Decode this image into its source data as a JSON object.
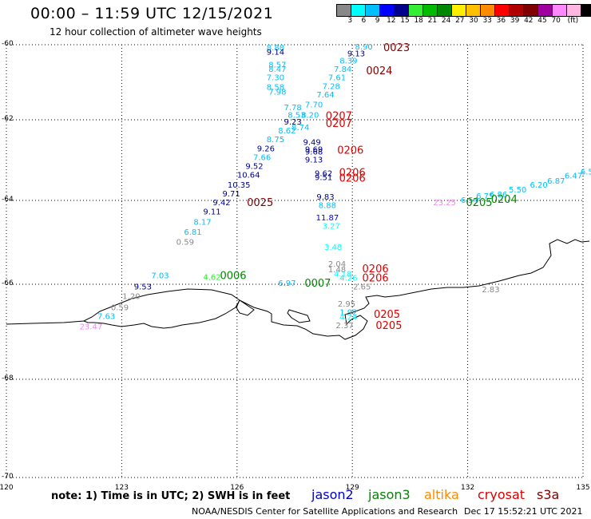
{
  "header": {
    "title": "00:00 – 11:59 UTC 12/15/2021",
    "subtitle": "12 hour collection of altimeter wave heights"
  },
  "legend": {
    "colors": [
      "#888888",
      "#00ffff",
      "#00bfff",
      "#0000ff",
      "#00008b",
      "#33ee33",
      "#00bb00",
      "#008800",
      "#ffee00",
      "#ffc000",
      "#ff8c00",
      "#ff0000",
      "#b00000",
      "#800000",
      "#a000a0",
      "#ff88ff",
      "#ffb6e0",
      "#000000"
    ],
    "labels": [
      "3",
      "6",
      "9",
      "12",
      "15",
      "18",
      "21",
      "24",
      "27",
      "30",
      "33",
      "36",
      "39",
      "42",
      "45",
      "70",
      "(ft)"
    ],
    "label_stops": [
      1,
      2,
      3,
      4,
      5,
      6,
      7,
      8,
      9,
      10,
      11,
      12,
      13,
      14,
      15,
      16,
      17
    ]
  },
  "axes": {
    "lat_labels": [
      "-60",
      "-62",
      "-64",
      "-66",
      "-68",
      "-70"
    ],
    "lon_labels": [
      "120",
      "123",
      "126",
      "129",
      "132",
      "135"
    ]
  },
  "note": "note: 1) Time is in UTC; 2) SWH is in feet",
  "satellites": [
    {
      "name": "jason2",
      "color": "#0000cc"
    },
    {
      "name": "jason3",
      "color": "#008800"
    },
    {
      "name": "altika",
      "color": "#ff8800"
    },
    {
      "name": "cryosat",
      "color": "#dd0000"
    },
    {
      "name": "s3a",
      "color": "#800000"
    }
  ],
  "footer": {
    "credit": "NOAA/NESDIS Center for Satellite Applications and Research",
    "generated": "Dec 17 15:52:21 UTC 2021"
  },
  "map_data": {
    "wave_labels": [
      {
        "text": "8.88",
        "lon": 127.0,
        "lat": -60.06,
        "color": "#00bfff"
      },
      {
        "text": "9.14",
        "lon": 127.0,
        "lat": -60.18,
        "color": "#00008b"
      },
      {
        "text": "8.90",
        "lon": 129.3,
        "lat": -60.04,
        "color": "#00bfff"
      },
      {
        "text": "9.13",
        "lon": 129.1,
        "lat": -60.22,
        "color": "#00008b"
      },
      {
        "text": "8.39",
        "lon": 128.9,
        "lat": -60.42,
        "color": "#00bfff"
      },
      {
        "text": "8.57",
        "lon": 127.05,
        "lat": -60.52,
        "color": "#00bfff"
      },
      {
        "text": "8.47",
        "lon": 127.05,
        "lat": -60.64,
        "color": "#00bfff"
      },
      {
        "text": "7.84",
        "lon": 128.75,
        "lat": -60.64,
        "color": "#00bfff"
      },
      {
        "text": "7.30",
        "lon": 127.0,
        "lat": -60.86,
        "color": "#00bfff"
      },
      {
        "text": "7.61",
        "lon": 128.6,
        "lat": -60.86,
        "color": "#00bfff"
      },
      {
        "text": "8.58",
        "lon": 127.0,
        "lat": -61.12,
        "color": "#00bfff"
      },
      {
        "text": "7.98",
        "lon": 127.05,
        "lat": -61.24,
        "color": "#00bfff"
      },
      {
        "text": "7.28",
        "lon": 128.45,
        "lat": -61.1,
        "color": "#00bfff"
      },
      {
        "text": "7.64",
        "lon": 128.3,
        "lat": -61.32,
        "color": "#00bfff"
      },
      {
        "text": "7.70",
        "lon": 128.0,
        "lat": -61.58,
        "color": "#00bfff"
      },
      {
        "text": "7.78",
        "lon": 127.45,
        "lat": -61.66,
        "color": "#00bfff"
      },
      {
        "text": "8.53",
        "lon": 127.55,
        "lat": -61.86,
        "color": "#00bfff"
      },
      {
        "text": "8.20",
        "lon": 127.9,
        "lat": -61.86,
        "color": "#00bfff"
      },
      {
        "text": "9.23",
        "lon": 127.45,
        "lat": -62.04,
        "color": "#00008b"
      },
      {
        "text": "8.74",
        "lon": 127.65,
        "lat": -62.18,
        "color": "#00bfff"
      },
      {
        "text": "8.62",
        "lon": 127.3,
        "lat": -62.26,
        "color": "#00bfff"
      },
      {
        "text": "8.75",
        "lon": 127.0,
        "lat": -62.48,
        "color": "#00bfff"
      },
      {
        "text": "9.49",
        "lon": 127.95,
        "lat": -62.54,
        "color": "#00008b"
      },
      {
        "text": "9.26",
        "lon": 126.75,
        "lat": -62.7,
        "color": "#00008b"
      },
      {
        "text": "9.69",
        "lon": 128.0,
        "lat": -62.72,
        "color": "#00008b"
      },
      {
        "text": "9.68",
        "lon": 128.0,
        "lat": -62.78,
        "color": "#00008b"
      },
      {
        "text": "7.66",
        "lon": 126.65,
        "lat": -62.92,
        "color": "#00bfff"
      },
      {
        "text": "9.13",
        "lon": 128.0,
        "lat": -62.98,
        "color": "#00008b"
      },
      {
        "text": "9.52",
        "lon": 126.45,
        "lat": -63.14,
        "color": "#00008b"
      },
      {
        "text": "10.64",
        "lon": 126.3,
        "lat": -63.36,
        "color": "#00008b"
      },
      {
        "text": "9.62",
        "lon": 128.25,
        "lat": -63.32,
        "color": "#00008b"
      },
      {
        "text": "9.51",
        "lon": 128.25,
        "lat": -63.42,
        "color": "#00008b"
      },
      {
        "text": "10.35",
        "lon": 126.05,
        "lat": -63.6,
        "color": "#00008b"
      },
      {
        "text": "9.71",
        "lon": 125.85,
        "lat": -63.82,
        "color": "#00008b"
      },
      {
        "text": "9.83",
        "lon": 128.3,
        "lat": -63.9,
        "color": "#00008b"
      },
      {
        "text": "9.42",
        "lon": 125.6,
        "lat": -64.04,
        "color": "#00008b"
      },
      {
        "text": "8.88",
        "lon": 128.35,
        "lat": -64.1,
        "color": "#00bfff"
      },
      {
        "text": "9.11",
        "lon": 125.35,
        "lat": -64.26,
        "color": "#00008b"
      },
      {
        "text": "11.87",
        "lon": 128.35,
        "lat": -64.4,
        "color": "#0000ff"
      },
      {
        "text": "8.17",
        "lon": 125.1,
        "lat": -64.5,
        "color": "#00bfff"
      },
      {
        "text": "3.27",
        "lon": 128.45,
        "lat": -64.6,
        "color": "#00ffff"
      },
      {
        "text": "6.81",
        "lon": 124.85,
        "lat": -64.74,
        "color": "#00bfff"
      },
      {
        "text": "0.59",
        "lon": 124.65,
        "lat": -64.98,
        "color": "#888888"
      },
      {
        "text": "3.48",
        "lon": 128.5,
        "lat": -65.1,
        "color": "#00ffff"
      },
      {
        "text": "2.04",
        "lon": 128.6,
        "lat": -65.5,
        "color": "#888888"
      },
      {
        "text": "1.48",
        "lon": 128.6,
        "lat": -65.64,
        "color": "#888888"
      },
      {
        "text": "4.18",
        "lon": 128.75,
        "lat": -65.74,
        "color": "#00ffff"
      },
      {
        "text": "4.26",
        "lon": 128.9,
        "lat": -65.84,
        "color": "#00ffff"
      },
      {
        "text": "2.65",
        "lon": 129.25,
        "lat": -66.04,
        "color": "#888888"
      },
      {
        "text": "7.03",
        "lon": 124.0,
        "lat": -65.78,
        "color": "#00bfff"
      },
      {
        "text": "4.62",
        "lon": 125.35,
        "lat": -65.82,
        "color": "#33ee33"
      },
      {
        "text": "6.97",
        "lon": 127.3,
        "lat": -65.96,
        "color": "#00bfff"
      },
      {
        "text": "9.53",
        "lon": 123.55,
        "lat": -66.04,
        "color": "#00008b"
      },
      {
        "text": "1.20",
        "lon": 123.25,
        "lat": -66.24,
        "color": "#888888"
      },
      {
        "text": "0.59",
        "lon": 122.95,
        "lat": -66.48,
        "color": "#888888"
      },
      {
        "text": "7.63",
        "lon": 122.6,
        "lat": -66.66,
        "color": "#00bfff"
      },
      {
        "text": "23.47",
        "lon": 122.2,
        "lat": -66.88,
        "color": "#ee88ee"
      },
      {
        "text": "2.95",
        "lon": 128.85,
        "lat": -66.4,
        "color": "#888888"
      },
      {
        "text": "1.92",
        "lon": 128.9,
        "lat": -66.58,
        "color": "#00bfff"
      },
      {
        "text": "4.24",
        "lon": 128.9,
        "lat": -66.68,
        "color": "#00ffff"
      },
      {
        "text": "2.37",
        "lon": 128.8,
        "lat": -66.86,
        "color": "#888888"
      },
      {
        "text": "2.83",
        "lon": 132.6,
        "lat": -66.1,
        "color": "#888888"
      },
      {
        "text": "23.25",
        "lon": 131.4,
        "lat": -64.04,
        "color": "#ee88ee"
      },
      {
        "text": "6.54",
        "lon": 132.05,
        "lat": -63.98,
        "color": "#00bfff"
      },
      {
        "text": "6.75",
        "lon": 132.45,
        "lat": -63.88,
        "color": "#00bfff"
      },
      {
        "text": "6.86",
        "lon": 132.8,
        "lat": -63.84,
        "color": "#00bfff"
      },
      {
        "text": "5.50",
        "lon": 133.3,
        "lat": -63.72,
        "color": "#00bfff"
      },
      {
        "text": "6.20",
        "lon": 133.85,
        "lat": -63.6,
        "color": "#00bfff"
      },
      {
        "text": "6.87",
        "lon": 134.3,
        "lat": -63.5,
        "color": "#00bfff"
      },
      {
        "text": "6.47",
        "lon": 134.75,
        "lat": -63.38,
        "color": "#00bfff"
      },
      {
        "text": "6.5",
        "lon": 135.1,
        "lat": -63.28,
        "color": "#00bfff"
      }
    ],
    "pass_labels": [
      {
        "text": "0023",
        "lon": 130.15,
        "lat": -60.06,
        "color": "#800000"
      },
      {
        "text": "0024",
        "lon": 129.7,
        "lat": -60.68,
        "color": "#800000"
      },
      {
        "text": "0207",
        "lon": 128.65,
        "lat": -61.88,
        "color": "#dd0000"
      },
      {
        "text": "0207",
        "lon": 128.65,
        "lat": -62.08,
        "color": "#dd0000"
      },
      {
        "text": "0206",
        "lon": 128.95,
        "lat": -62.74,
        "color": "#dd0000"
      },
      {
        "text": "0206",
        "lon": 129.0,
        "lat": -63.3,
        "color": "#dd0000"
      },
      {
        "text": "0206",
        "lon": 129.0,
        "lat": -63.44,
        "color": "#dd0000"
      },
      {
        "text": "0025",
        "lon": 126.6,
        "lat": -64.04,
        "color": "#800000"
      },
      {
        "text": "0205",
        "lon": 132.3,
        "lat": -64.04,
        "color": "#008800"
      },
      {
        "text": "0204",
        "lon": 132.95,
        "lat": -63.96,
        "color": "#008800"
      },
      {
        "text": "0006",
        "lon": 125.9,
        "lat": -65.78,
        "color": "#008800"
      },
      {
        "text": "0007",
        "lon": 128.1,
        "lat": -65.96,
        "color": "#008800"
      },
      {
        "text": "0206",
        "lon": 129.6,
        "lat": -65.62,
        "color": "#dd0000"
      },
      {
        "text": "0206",
        "lon": 129.6,
        "lat": -65.84,
        "color": "#dd0000"
      },
      {
        "text": "0205",
        "lon": 129.9,
        "lat": -66.62,
        "color": "#dd0000"
      },
      {
        "text": "0205",
        "lon": 129.95,
        "lat": -66.86,
        "color": "#dd0000"
      }
    ]
  }
}
